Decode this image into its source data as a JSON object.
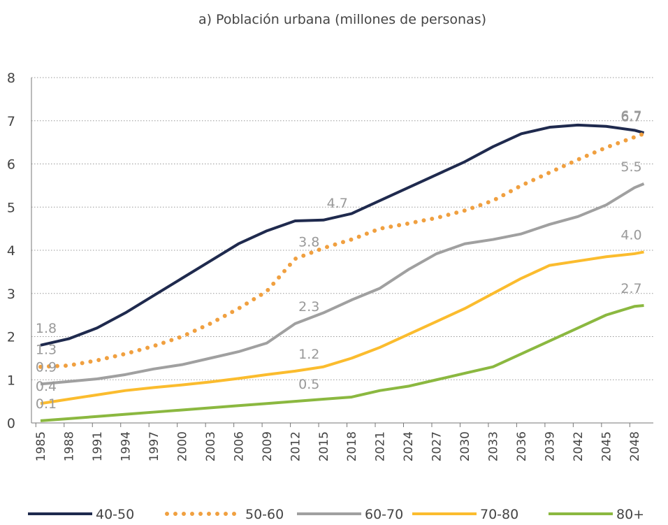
{
  "chart_data": {
    "type": "line",
    "title": "a) Población urbana (millones de personas)",
    "x": [
      1985,
      1988,
      1991,
      1994,
      1997,
      2000,
      2003,
      2006,
      2009,
      2012,
      2015,
      2018,
      2021,
      2024,
      2027,
      2030,
      2033,
      2036,
      2039,
      2042,
      2045,
      2048,
      2049
    ],
    "xlim": [
      1985,
      2050
    ],
    "xticks": [
      1985,
      1988,
      1991,
      1994,
      1997,
      2000,
      2003,
      2006,
      2009,
      2012,
      2015,
      2018,
      2021,
      2024,
      2027,
      2030,
      2033,
      2036,
      2039,
      2042,
      2045,
      2048
    ],
    "ylim": [
      0,
      8
    ],
    "yticks": [
      0,
      1,
      2,
      3,
      4,
      5,
      6,
      7,
      8
    ],
    "grid": true,
    "legend": "bottom",
    "series": [
      {
        "name": "40-50",
        "color": "#1f2a4e",
        "style": "solid",
        "values": [
          1.8,
          1.95,
          2.2,
          2.55,
          2.95,
          3.35,
          3.75,
          4.15,
          4.45,
          4.68,
          4.7,
          4.85,
          5.15,
          5.45,
          5.75,
          6.05,
          6.4,
          6.7,
          6.85,
          6.9,
          6.87,
          6.78,
          6.72
        ],
        "value_labels": [
          "1.8",
          null,
          null,
          null,
          null,
          null,
          null,
          null,
          null,
          null,
          "4.7",
          null,
          null,
          null,
          null,
          null,
          null,
          null,
          null,
          null,
          null,
          null,
          "6.7"
        ]
      },
      {
        "name": "50-60",
        "color": "#f0a040",
        "style": "dotted",
        "values": [
          1.3,
          1.33,
          1.45,
          1.6,
          1.78,
          2.0,
          2.3,
          2.65,
          3.05,
          3.8,
          4.05,
          4.25,
          4.5,
          4.62,
          4.75,
          4.92,
          5.15,
          5.5,
          5.8,
          6.1,
          6.38,
          6.62,
          6.7
        ],
        "value_labels": [
          "1.3",
          null,
          null,
          null,
          null,
          null,
          null,
          null,
          null,
          "3.8",
          null,
          null,
          null,
          null,
          null,
          null,
          null,
          null,
          null,
          null,
          null,
          null,
          "6.7"
        ]
      },
      {
        "name": "60-70",
        "color": "#a0a0a0",
        "style": "solid",
        "values": [
          0.9,
          0.96,
          1.02,
          1.12,
          1.25,
          1.35,
          1.5,
          1.65,
          1.85,
          2.3,
          2.55,
          2.85,
          3.12,
          3.55,
          3.92,
          4.15,
          4.25,
          4.38,
          4.6,
          4.78,
          5.05,
          5.45,
          5.54
        ],
        "value_labels": [
          "0.9",
          null,
          null,
          null,
          null,
          null,
          null,
          null,
          null,
          "2.3",
          null,
          null,
          null,
          null,
          null,
          null,
          null,
          null,
          null,
          null,
          null,
          null,
          "5.5"
        ]
      },
      {
        "name": "70-80",
        "color": "#fbbc2e",
        "style": "solid",
        "values": [
          0.45,
          0.55,
          0.65,
          0.75,
          0.82,
          0.88,
          0.95,
          1.03,
          1.12,
          1.2,
          1.3,
          1.5,
          1.75,
          2.05,
          2.35,
          2.65,
          3.0,
          3.35,
          3.65,
          3.75,
          3.85,
          3.92,
          3.96
        ],
        "value_labels": [
          "0.4",
          null,
          null,
          null,
          null,
          null,
          null,
          null,
          null,
          "1.2",
          null,
          null,
          null,
          null,
          null,
          null,
          null,
          null,
          null,
          null,
          null,
          null,
          "4.0"
        ]
      },
      {
        "name": "80+",
        "color": "#8bb840",
        "style": "solid",
        "values": [
          0.05,
          0.1,
          0.15,
          0.2,
          0.25,
          0.3,
          0.35,
          0.4,
          0.45,
          0.5,
          0.55,
          0.6,
          0.75,
          0.85,
          1.0,
          1.15,
          1.3,
          1.6,
          1.9,
          2.2,
          2.5,
          2.7,
          2.72
        ],
        "value_labels": [
          "0.1",
          null,
          null,
          null,
          null,
          null,
          null,
          null,
          null,
          "0.5",
          null,
          null,
          null,
          null,
          null,
          null,
          null,
          null,
          null,
          null,
          null,
          null,
          "2.7"
        ]
      }
    ]
  }
}
